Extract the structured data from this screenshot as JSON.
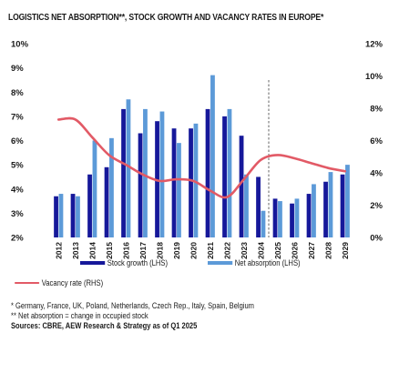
{
  "title": "LOGISTICS NET ABSORPTION**, STOCK GROWTH AND VACANCY RATES IN EUROPE*",
  "colors": {
    "stock": "#16189a",
    "absorption": "#5c9ad8",
    "vacancy": "#e25a66",
    "divider": "#555555"
  },
  "legend": {
    "stock": "Stock growth (LHS)",
    "absorption": "Net absorption (LHS)",
    "vacancy": "Vacancy rate (RHS)"
  },
  "notes": {
    "countries": "* Germany, France, UK, Poland, Netherlands, Czech Rep., Italy, Spain, Belgium",
    "absorption_def": "** Net absorption = change in occupied stock",
    "sources": "Sources: CBRE, AEW Research & Strategy as of Q1 2025"
  },
  "chart_data": {
    "type": "bar",
    "categories": [
      "2012",
      "2013",
      "2014",
      "2015",
      "2016",
      "2017",
      "2018",
      "2019",
      "2020",
      "2021",
      "2022",
      "2023",
      "2024",
      "2025",
      "2026",
      "2027",
      "2028",
      "2029"
    ],
    "series": [
      {
        "name": "Stock growth (LHS)",
        "type": "bar",
        "axis": "left",
        "values": [
          3.7,
          3.8,
          4.6,
          4.9,
          7.3,
          6.3,
          6.8,
          6.5,
          6.5,
          7.3,
          7.0,
          6.2,
          4.5,
          3.6,
          3.4,
          3.8,
          4.3,
          4.6
        ]
      },
      {
        "name": "Net absorption (LHS)",
        "type": "bar",
        "axis": "left",
        "values": [
          3.8,
          3.7,
          6.0,
          6.1,
          7.7,
          7.3,
          7.2,
          5.9,
          6.7,
          8.7,
          7.3,
          4.6,
          3.1,
          3.5,
          3.6,
          4.2,
          4.7,
          5.0
        ]
      },
      {
        "name": "Vacancy rate (RHS)",
        "type": "line",
        "axis": "right",
        "values": [
          7.3,
          7.3,
          6.2,
          5.1,
          4.5,
          3.9,
          3.5,
          3.6,
          3.5,
          2.9,
          2.5,
          3.6,
          4.8,
          5.1,
          4.9,
          4.6,
          4.3,
          4.1
        ]
      }
    ],
    "y_left": {
      "min": 2,
      "max": 10,
      "ticks": [
        "2%",
        "3%",
        "4%",
        "5%",
        "6%",
        "7%",
        "8%",
        "9%",
        "10%"
      ]
    },
    "y_right": {
      "min": 0,
      "max": 12,
      "ticks": [
        "0%",
        "2%",
        "4%",
        "6%",
        "8%",
        "10%",
        "12%"
      ]
    },
    "forecast_marker": "2025",
    "grid": false,
    "legend_position": "bottom"
  }
}
